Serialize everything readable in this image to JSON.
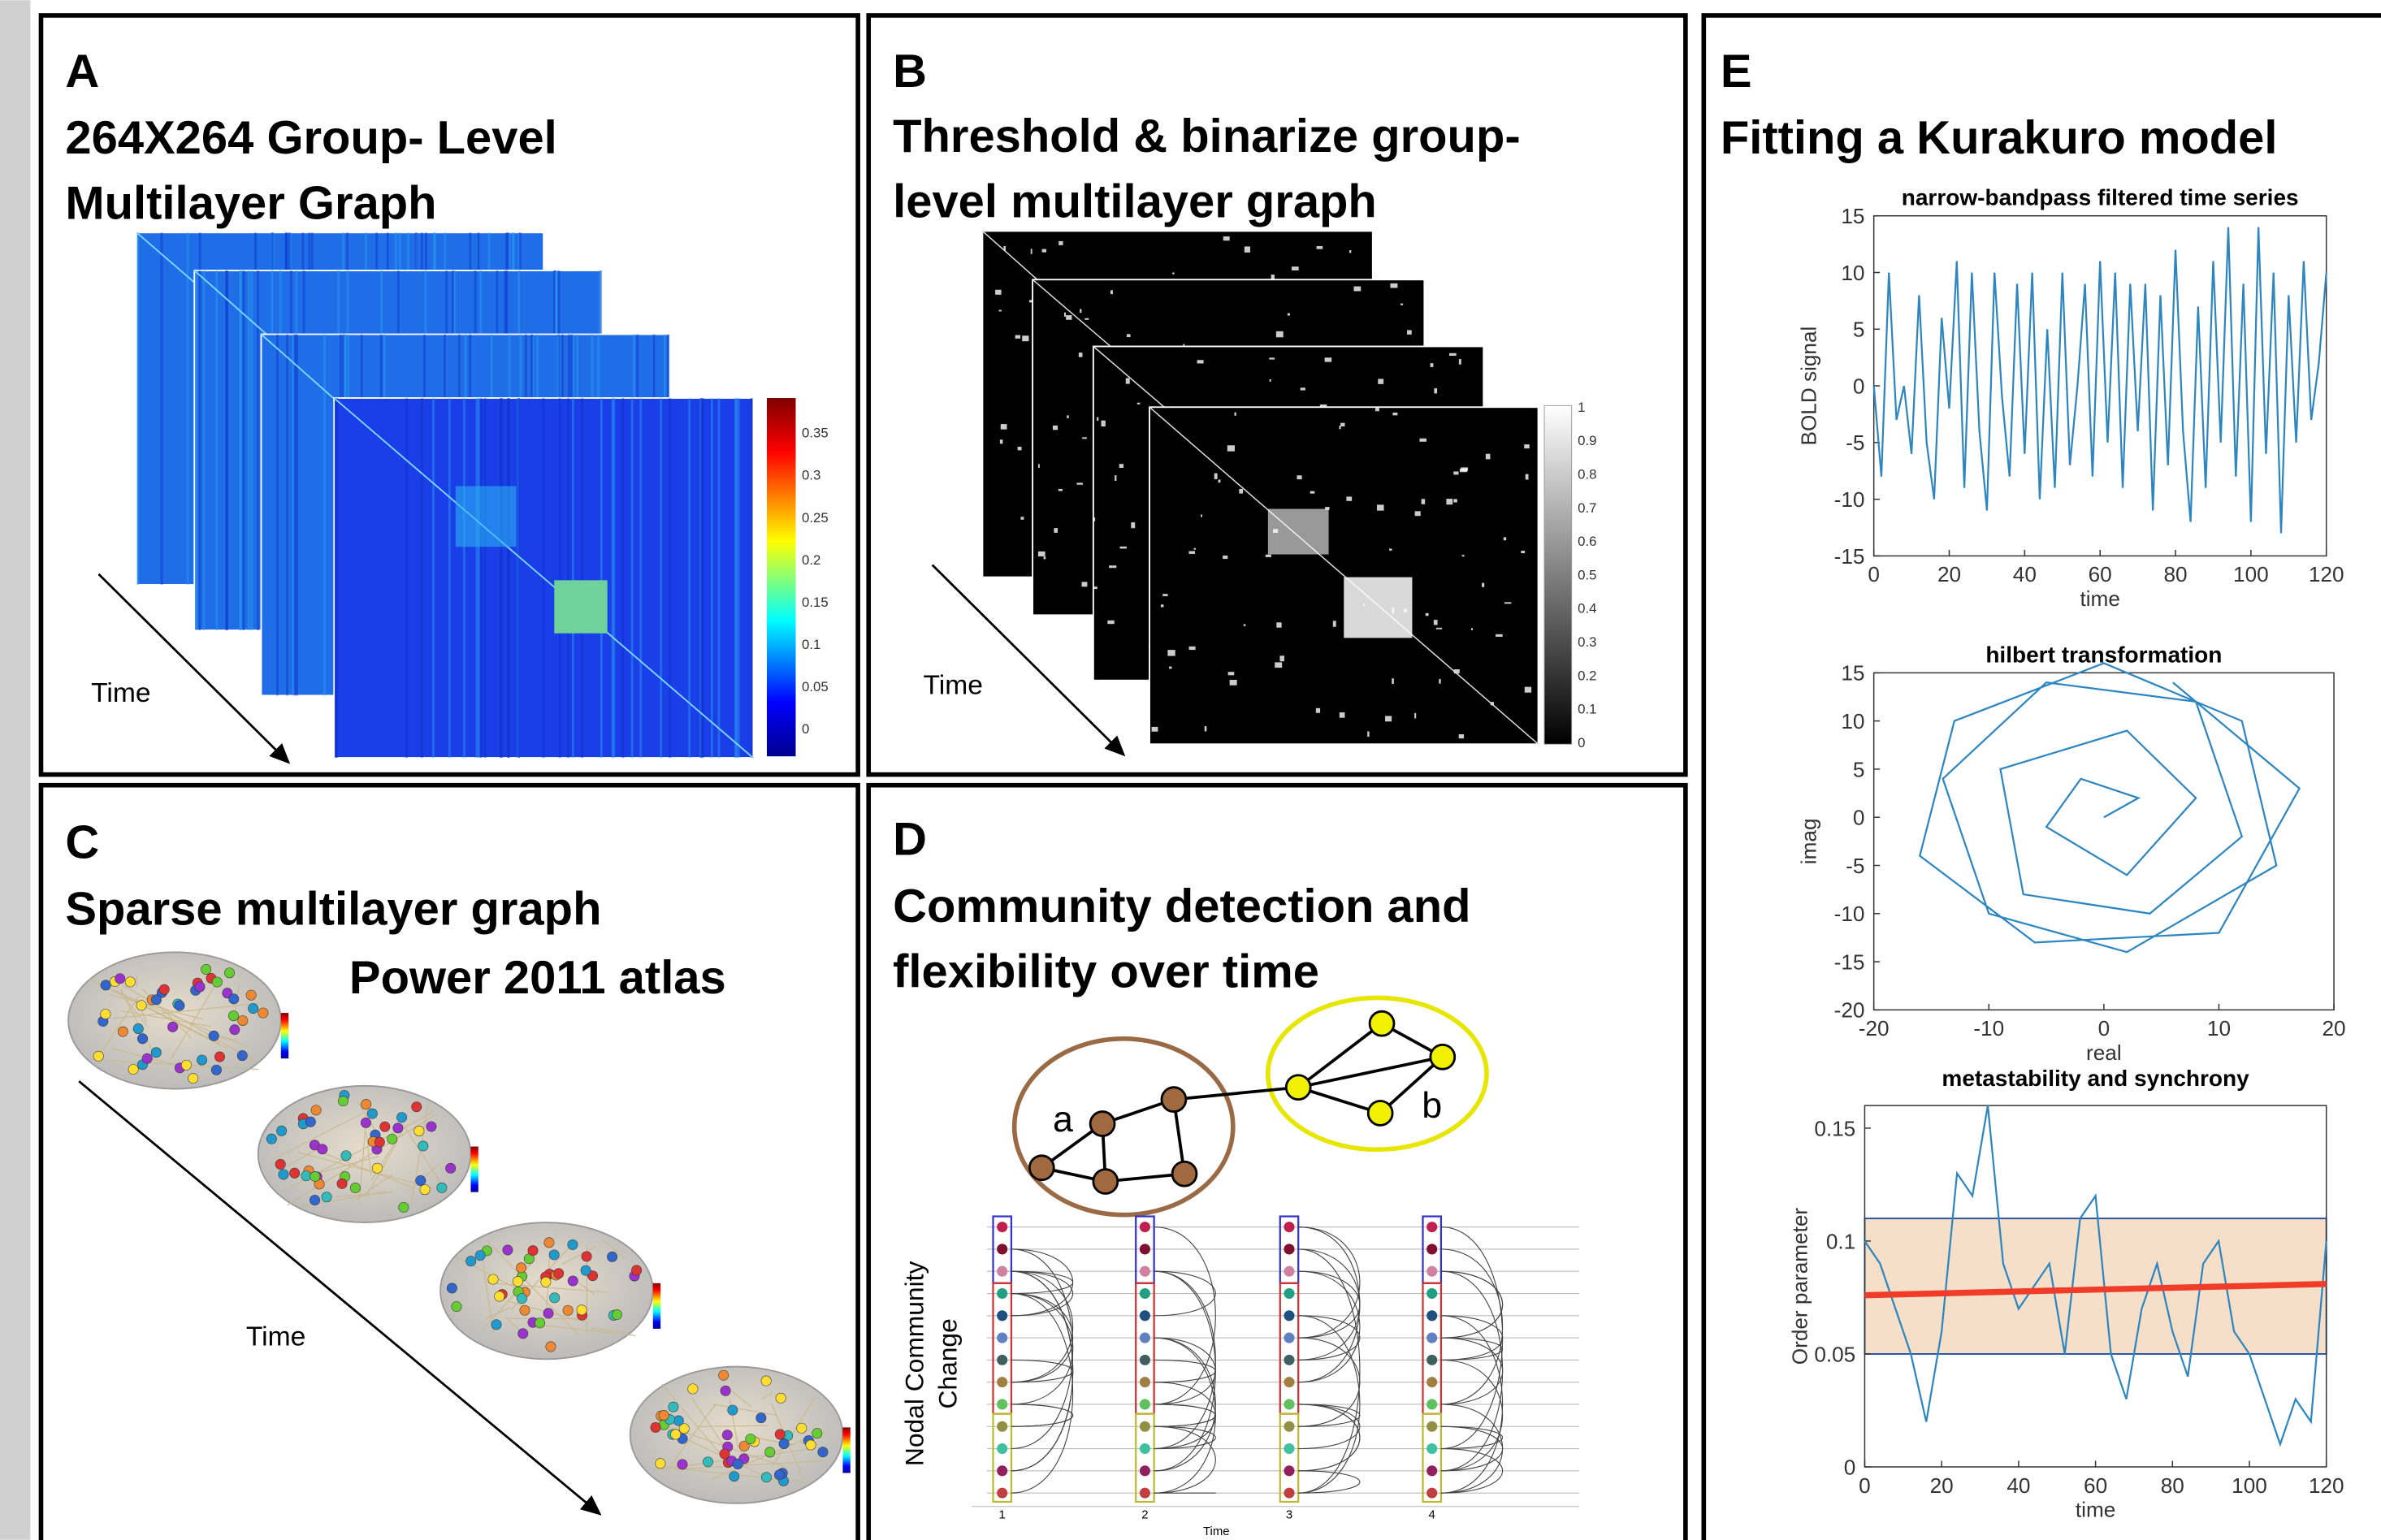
{
  "panel_a": {
    "letter": "A",
    "title_lines": [
      "264X264 Group- Level",
      "Multilayer Graph"
    ],
    "time_label": "Time",
    "colorbar_ticks": [
      0,
      0.05,
      0.1,
      0.15,
      0.2,
      0.25,
      0.3,
      0.35
    ]
  },
  "panel_b": {
    "letter": "B",
    "title_lines": [
      "Threshold & binarize group-",
      "level multilayer graph"
    ],
    "time_label": "Time",
    "colorbar_ticks": [
      0,
      0.1,
      0.2,
      0.3,
      0.4,
      0.5,
      0.6,
      0.7,
      0.8,
      0.9,
      1
    ]
  },
  "panel_c": {
    "letter": "C",
    "title": "Sparse multilayer graph",
    "atlas": "Power 2011 atlas",
    "time_label": "Time"
  },
  "panel_d": {
    "letter": "D",
    "title_lines": [
      "Community detection and",
      "flexibility over time"
    ],
    "node_labels": [
      "a",
      "b"
    ],
    "y_label_lines": [
      "Nodal Community",
      "Change"
    ],
    "x_ticks": [
      1,
      2,
      3,
      4
    ],
    "x_label": "Time"
  },
  "panel_e": {
    "letter": "E",
    "title": "Fitting a Kurakuro model",
    "charts": [
      {
        "type": "line",
        "title": "narrow-bandpass filtered time series",
        "xlabel": "time",
        "ylabel": "BOLD signal",
        "xlim": [
          0,
          120
        ],
        "ylim": [
          -15,
          15
        ],
        "xticks": [
          0,
          20,
          40,
          60,
          80,
          100,
          120
        ],
        "yticks": [
          -15,
          -10,
          -5,
          0,
          5,
          10,
          15
        ],
        "color": "#2e86c1",
        "x": [
          0,
          2,
          4,
          6,
          8,
          10,
          12,
          14,
          16,
          18,
          20,
          22,
          24,
          26,
          28,
          30,
          32,
          34,
          36,
          38,
          40,
          42,
          44,
          46,
          48,
          50,
          52,
          54,
          56,
          58,
          60,
          62,
          64,
          66,
          68,
          70,
          72,
          74,
          76,
          78,
          80,
          82,
          84,
          86,
          88,
          90,
          92,
          94,
          96,
          98,
          100,
          102,
          104,
          106,
          108,
          110,
          112,
          114,
          116,
          118,
          120
        ],
        "values": [
          0,
          -8,
          10,
          -3,
          0,
          -6,
          8,
          -5,
          -10,
          6,
          -2,
          11,
          -9,
          10,
          -4,
          -11,
          10,
          -1,
          -8,
          9,
          -6,
          10,
          -10,
          5,
          -9,
          10,
          -7,
          0,
          9,
          -8,
          11,
          -5,
          10,
          -9,
          9,
          -4,
          9,
          -11,
          8,
          -7,
          12,
          -4,
          -12,
          7,
          -9,
          11,
          -5,
          14,
          -8,
          9,
          -12,
          14,
          -6,
          10,
          -13,
          8,
          -5,
          11,
          -3,
          2,
          10
        ]
      },
      {
        "type": "line",
        "title": "hilbert transformation",
        "xlabel": "real",
        "ylabel": "imag",
        "xlim": [
          -20,
          20
        ],
        "ylim": [
          -20,
          15
        ],
        "xticks": [
          -20,
          -10,
          0,
          10,
          20
        ],
        "yticks": [
          -20,
          -15,
          -10,
          -5,
          0,
          5,
          10,
          15
        ],
        "color": "#2e86c1",
        "x": [
          0,
          3,
          -2,
          -5,
          2,
          8,
          2,
          -9,
          -7,
          4,
          12,
          8,
          -5,
          -14,
          -10,
          2,
          15,
          12,
          0,
          -13,
          -16,
          -6,
          10,
          17,
          6
        ],
        "values": [
          0,
          2,
          4,
          -1,
          -6,
          2,
          9,
          5,
          -8,
          -10,
          -2,
          12,
          14,
          4,
          -10,
          -14,
          -5,
          10,
          16,
          10,
          -4,
          -13,
          -12,
          3,
          14
        ]
      },
      {
        "type": "line",
        "title": "metastability and synchrony",
        "xlabel": "time",
        "ylabel": "Order parameter",
        "xlim": [
          0,
          120
        ],
        "ylim": [
          0,
          0.16
        ],
        "xticks": [
          0,
          20,
          40,
          60,
          80,
          100,
          120
        ],
        "yticks": [
          0,
          0.05,
          0.1,
          0.15
        ],
        "color": "#2e86c1",
        "band": [
          0.05,
          0.11
        ],
        "fit_line": [
          0.076,
          0.081
        ],
        "x": [
          0,
          4,
          8,
          12,
          16,
          20,
          24,
          28,
          32,
          36,
          40,
          44,
          48,
          52,
          56,
          60,
          64,
          68,
          72,
          76,
          80,
          84,
          88,
          92,
          96,
          100,
          104,
          108,
          112,
          116,
          120
        ],
        "values": [
          0.1,
          0.09,
          0.07,
          0.05,
          0.02,
          0.06,
          0.13,
          0.12,
          0.16,
          0.09,
          0.07,
          0.08,
          0.09,
          0.05,
          0.11,
          0.12,
          0.05,
          0.03,
          0.07,
          0.09,
          0.06,
          0.04,
          0.09,
          0.1,
          0.06,
          0.05,
          0.03,
          0.01,
          0.03,
          0.02,
          0.1
        ]
      }
    ]
  }
}
